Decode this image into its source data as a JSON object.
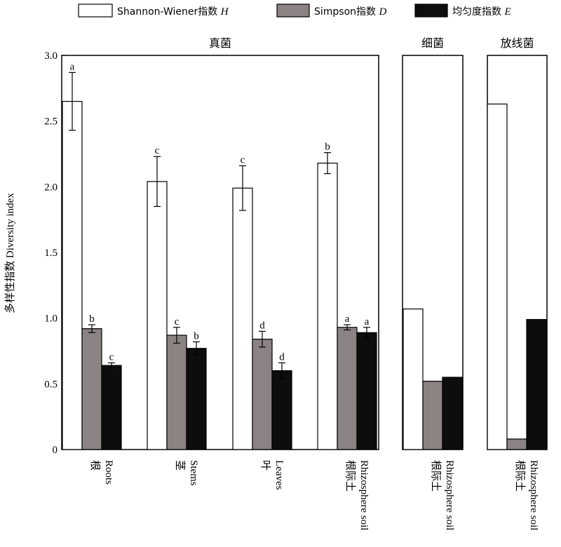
{
  "chart_data": {
    "type": "bar",
    "ylabel": "多样性指数 Diversity index",
    "ylim": [
      0,
      3.0
    ],
    "yticks": [
      "0",
      "0.5",
      "1.0",
      "1.5",
      "2.0",
      "2.5",
      "3.0"
    ],
    "legend": {
      "placement": "top",
      "entries": [
        {
          "key": "H",
          "prefix": "Shannon-Wiener指数 ",
          "symbol": "H",
          "color": "#ffffff"
        },
        {
          "key": "D",
          "prefix": "Simpson指数 ",
          "symbol": "D",
          "color": "#8a8283"
        },
        {
          "key": "E",
          "prefix": "均匀度指数 ",
          "symbol": "E",
          "color": "#0d0d0d"
        }
      ]
    },
    "panels": [
      {
        "title": "真菌",
        "groups": [
          {
            "label_cn": "根",
            "label_en": "Roots",
            "H": {
              "value": 2.65,
              "err": 0.22,
              "letter": "a"
            },
            "D": {
              "value": 0.92,
              "err": 0.03,
              "letter": "b"
            },
            "E": {
              "value": 0.64,
              "err": 0.02,
              "letter": "c"
            }
          },
          {
            "label_cn": "茎",
            "label_en": "Stems",
            "H": {
              "value": 2.04,
              "err": 0.19,
              "letter": "c"
            },
            "D": {
              "value": 0.87,
              "err": 0.06,
              "letter": "c"
            },
            "E": {
              "value": 0.77,
              "err": 0.05,
              "letter": "b"
            }
          },
          {
            "label_cn": "叶",
            "label_en": "Leaves",
            "H": {
              "value": 1.99,
              "err": 0.17,
              "letter": "c"
            },
            "D": {
              "value": 0.84,
              "err": 0.06,
              "letter": "d"
            },
            "E": {
              "value": 0.6,
              "err": 0.06,
              "letter": "d"
            }
          },
          {
            "label_cn": "根际土",
            "label_en": "Rhizosphere soil",
            "H": {
              "value": 2.18,
              "err": 0.08,
              "letter": "b"
            },
            "D": {
              "value": 0.93,
              "err": 0.02,
              "letter": "a"
            },
            "E": {
              "value": 0.89,
              "err": 0.04,
              "letter": "a"
            }
          }
        ]
      },
      {
        "title": "细菌",
        "groups": [
          {
            "label_cn": "根际土",
            "label_en": "Rhizosphere soil",
            "H": {
              "value": 1.07
            },
            "D": {
              "value": 0.52
            },
            "E": {
              "value": 0.55
            }
          }
        ]
      },
      {
        "title": "放线菌",
        "groups": [
          {
            "label_cn": "根际土",
            "label_en": "Rhizosphere soil",
            "H": {
              "value": 2.63
            },
            "D": {
              "value": 0.08
            },
            "E": {
              "value": 0.99
            }
          }
        ]
      }
    ]
  }
}
